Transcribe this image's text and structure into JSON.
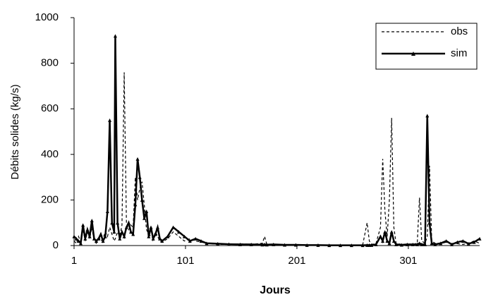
{
  "chart_data": {
    "type": "line",
    "x_label": "Jours",
    "y_label": "Débits solides (kg/s)",
    "x": [
      1,
      3,
      5,
      7,
      9,
      11,
      13,
      15,
      17,
      19,
      21,
      23,
      25,
      27,
      29,
      31,
      33,
      35,
      37,
      38,
      40,
      42,
      44,
      46,
      48,
      50,
      52,
      54,
      56,
      58,
      60,
      62,
      64,
      66,
      68,
      70,
      72,
      74,
      76,
      78,
      80,
      85,
      90,
      95,
      100,
      105,
      110,
      115,
      120,
      130,
      140,
      150,
      160,
      170,
      172,
      174,
      180,
      190,
      200,
      210,
      220,
      230,
      240,
      250,
      260,
      264,
      266,
      268,
      272,
      276,
      278,
      280,
      282,
      284,
      286,
      288,
      290,
      295,
      300,
      305,
      309,
      311,
      313,
      316,
      318,
      320,
      322,
      325,
      330,
      335,
      340,
      345,
      350,
      355,
      360,
      365
    ],
    "series": [
      {
        "name": "obs",
        "color": "#000000",
        "line_style": "dashed",
        "values": [
          20,
          10,
          40,
          15,
          70,
          20,
          60,
          30,
          80,
          20,
          10,
          40,
          20,
          30,
          60,
          40,
          80,
          50,
          20,
          30,
          60,
          40,
          90,
          760,
          100,
          70,
          90,
          80,
          300,
          200,
          250,
          280,
          180,
          70,
          50,
          40,
          30,
          60,
          40,
          20,
          15,
          30,
          60,
          40,
          20,
          30,
          20,
          15,
          10,
          5,
          5,
          8,
          5,
          10,
          40,
          5,
          5,
          4,
          3,
          2,
          2,
          1,
          1,
          1,
          2,
          100,
          20,
          5,
          10,
          80,
          380,
          150,
          40,
          200,
          560,
          80,
          10,
          5,
          5,
          5,
          10,
          210,
          20,
          10,
          40,
          350,
          20,
          10,
          8,
          15,
          10,
          8,
          5,
          10,
          20,
          10
        ]
      },
      {
        "name": "sim",
        "color": "#000000",
        "line_style": "solid",
        "marker": "triangle",
        "values": [
          40,
          30,
          20,
          10,
          90,
          30,
          70,
          40,
          110,
          30,
          20,
          30,
          50,
          20,
          40,
          150,
          550,
          100,
          60,
          920,
          100,
          30,
          60,
          40,
          80,
          100,
          60,
          50,
          180,
          380,
          300,
          200,
          120,
          150,
          40,
          80,
          30,
          50,
          80,
          30,
          20,
          40,
          80,
          60,
          40,
          20,
          30,
          20,
          10,
          8,
          6,
          5,
          5,
          4,
          5,
          4,
          5,
          3,
          3,
          2,
          2,
          1,
          1,
          1,
          1,
          2,
          2,
          2,
          5,
          40,
          20,
          60,
          20,
          10,
          60,
          20,
          5,
          3,
          5,
          5,
          5,
          10,
          5,
          5,
          570,
          100,
          10,
          5,
          10,
          20,
          5,
          15,
          20,
          8,
          15,
          30
        ]
      }
    ],
    "xlim": [
      1,
      365
    ],
    "ylim": [
      0,
      1000
    ],
    "xticks": [
      1,
      101,
      201,
      301
    ],
    "yticks": [
      0,
      200,
      400,
      600,
      800,
      1000
    ],
    "legend": "top-right"
  }
}
